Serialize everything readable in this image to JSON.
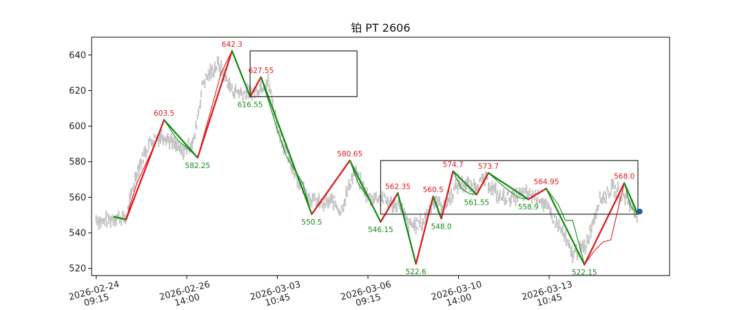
{
  "chart_data": {
    "type": "line",
    "title": "铂 PT 2606",
    "xlabel": "",
    "ylabel": "",
    "ylim": [
      516,
      650
    ],
    "yticks": [
      520,
      540,
      560,
      580,
      600,
      620,
      640
    ],
    "xlim": [
      -5,
      633
    ],
    "xticks": [
      {
        "pos": 0,
        "line1": "2026-02-24",
        "line2": "09:15"
      },
      {
        "pos": 100,
        "line1": "2026-02-26",
        "line2": "14:00"
      },
      {
        "pos": 200,
        "line1": "2026-03-03",
        "line2": "10:45"
      },
      {
        "pos": 300,
        "line1": "2026-03-06",
        "line2": "09:15"
      },
      {
        "pos": 400,
        "line1": "2026-03-10",
        "line2": "14:00"
      },
      {
        "pos": 500,
        "line1": "2026-03-13",
        "line2": "10:45"
      }
    ],
    "grid": false,
    "bar_anchors": [
      [
        0,
        548
      ],
      [
        8,
        546
      ],
      [
        20,
        549
      ],
      [
        33,
        548
      ],
      [
        45,
        575
      ],
      [
        60,
        592
      ],
      [
        75,
        595
      ],
      [
        95,
        585
      ],
      [
        108,
        592
      ],
      [
        118,
        625
      ],
      [
        135,
        635
      ],
      [
        150,
        620
      ],
      [
        170,
        618
      ],
      [
        190,
        625
      ],
      [
        200,
        600
      ],
      [
        212,
        582
      ],
      [
        228,
        565
      ],
      [
        240,
        558
      ],
      [
        250,
        556
      ],
      [
        262,
        558
      ],
      [
        270,
        552
      ],
      [
        285,
        575
      ],
      [
        300,
        560
      ],
      [
        315,
        560
      ],
      [
        325,
        556
      ],
      [
        335,
        556
      ],
      [
        345,
        544
      ],
      [
        360,
        545
      ],
      [
        372,
        558
      ],
      [
        385,
        555
      ],
      [
        400,
        568
      ],
      [
        415,
        566
      ],
      [
        430,
        570
      ],
      [
        445,
        560
      ],
      [
        460,
        560
      ],
      [
        475,
        562
      ],
      [
        490,
        560
      ],
      [
        505,
        548
      ],
      [
        515,
        540
      ],
      [
        525,
        528
      ],
      [
        540,
        532
      ],
      [
        555,
        558
      ],
      [
        570,
        565
      ],
      [
        585,
        560
      ],
      [
        597,
        550
      ]
    ],
    "stroke_segments": [
      {
        "from": [
          20,
          549
        ],
        "to": [
          33,
          547.5
        ],
        "direction": "down"
      },
      {
        "from": [
          33,
          547.5
        ],
        "to": [
          75,
          603.5
        ],
        "direction": "up"
      },
      {
        "from": [
          75,
          603.5
        ],
        "to": [
          112,
          582.25
        ],
        "direction": "down"
      },
      {
        "from": [
          112,
          582.25
        ],
        "to": [
          150,
          642.3
        ],
        "direction": "up"
      },
      {
        "from": [
          150,
          642.3
        ],
        "to": [
          170,
          616.55
        ],
        "direction": "down"
      },
      {
        "from": [
          170,
          616.55
        ],
        "to": [
          182,
          627.55
        ],
        "direction": "up"
      },
      {
        "from": [
          182,
          627.55
        ],
        "to": [
          238,
          550.5
        ],
        "direction": "down"
      },
      {
        "from": [
          238,
          550.5
        ],
        "to": [
          280,
          580.65
        ],
        "direction": "up"
      },
      {
        "from": [
          280,
          580.65
        ],
        "to": [
          314,
          546.15
        ],
        "direction": "down"
      },
      {
        "from": [
          314,
          546.15
        ],
        "to": [
          333,
          562.35
        ],
        "direction": "up"
      },
      {
        "from": [
          333,
          562.35
        ],
        "to": [
          353,
          522.6
        ],
        "direction": "down"
      },
      {
        "from": [
          353,
          522.6
        ],
        "to": [
          372,
          560.5
        ],
        "direction": "up"
      },
      {
        "from": [
          372,
          560.5
        ],
        "to": [
          381,
          548.0
        ],
        "direction": "down"
      },
      {
        "from": [
          381,
          548.0
        ],
        "to": [
          394,
          574.7
        ],
        "direction": "up"
      },
      {
        "from": [
          394,
          574.7
        ],
        "to": [
          420,
          561.55
        ],
        "direction": "down"
      },
      {
        "from": [
          420,
          561.55
        ],
        "to": [
          433,
          573.7
        ],
        "direction": "up"
      },
      {
        "from": [
          433,
          573.7
        ],
        "to": [
          477,
          558.9
        ],
        "direction": "down"
      },
      {
        "from": [
          477,
          558.9
        ],
        "to": [
          497,
          564.95
        ],
        "direction": "up"
      },
      {
        "from": [
          497,
          564.95
        ],
        "to": [
          539,
          522.15
        ],
        "direction": "down"
      },
      {
        "from": [
          539,
          522.15
        ],
        "to": [
          583,
          568.0
        ],
        "direction": "up"
      },
      {
        "from": [
          583,
          568.0
        ],
        "to": [
          598,
          550.5
        ],
        "direction": "down"
      }
    ],
    "sub_lines": [
      {
        "direction": "up",
        "points": [
          [
            33,
            548
          ],
          [
            45,
            568
          ],
          [
            55,
            579
          ],
          [
            65,
            590
          ],
          [
            75,
            603.5
          ]
        ]
      },
      {
        "direction": "down",
        "points": [
          [
            75,
            603.5
          ],
          [
            90,
            592
          ],
          [
            100,
            588
          ],
          [
            112,
            582.25
          ]
        ]
      },
      {
        "direction": "up",
        "points": [
          [
            112,
            582.25
          ],
          [
            125,
            606
          ],
          [
            138,
            630
          ],
          [
            150,
            642.3
          ]
        ]
      },
      {
        "direction": "down",
        "points": [
          [
            182,
            627.55
          ],
          [
            200,
            598
          ],
          [
            210,
            583
          ],
          [
            228,
            568
          ],
          [
            238,
            550.5
          ]
        ]
      },
      {
        "direction": "down",
        "points": [
          [
            280,
            580.65
          ],
          [
            290,
            567
          ],
          [
            300,
            560
          ],
          [
            314,
            546.15
          ]
        ]
      },
      {
        "direction": "down",
        "points": [
          [
            394,
            574.7
          ],
          [
            403,
            565
          ],
          [
            412,
            562
          ],
          [
            420,
            561.55
          ]
        ]
      },
      {
        "direction": "down",
        "points": [
          [
            433,
            573.7
          ],
          [
            450,
            566
          ],
          [
            465,
            560
          ],
          [
            477,
            558.9
          ]
        ]
      },
      {
        "direction": "down",
        "points": [
          [
            497,
            564.95
          ],
          [
            510,
            556
          ],
          [
            518,
            547
          ],
          [
            526,
            547
          ],
          [
            539,
            522.15
          ]
        ]
      },
      {
        "direction": "up",
        "points": [
          [
            539,
            522.15
          ],
          [
            550,
            530
          ],
          [
            560,
            535
          ],
          [
            568,
            536
          ],
          [
            583,
            568.0
          ]
        ]
      },
      {
        "direction": "down",
        "points": [
          [
            583,
            568.0
          ],
          [
            590,
            555
          ],
          [
            598,
            550.5
          ]
        ]
      }
    ],
    "peak_labels": [
      {
        "x": 75,
        "y": 603.5,
        "text": "603.5",
        "kind": "high"
      },
      {
        "x": 112,
        "y": 582.25,
        "text": "582.25",
        "kind": "low"
      },
      {
        "x": 150,
        "y": 642.3,
        "text": "642.3",
        "kind": "high"
      },
      {
        "x": 170,
        "y": 616.55,
        "text": "616.55",
        "kind": "low"
      },
      {
        "x": 182,
        "y": 627.55,
        "text": "627.55",
        "kind": "high"
      },
      {
        "x": 238,
        "y": 550.5,
        "text": "550.5",
        "kind": "low"
      },
      {
        "x": 280,
        "y": 580.65,
        "text": "580.65",
        "kind": "high"
      },
      {
        "x": 314,
        "y": 546.15,
        "text": "546.15",
        "kind": "low"
      },
      {
        "x": 333,
        "y": 562.35,
        "text": "562.35",
        "kind": "high"
      },
      {
        "x": 353,
        "y": 522.6,
        "text": "522.6",
        "kind": "low"
      },
      {
        "x": 372,
        "y": 560.5,
        "text": "560.5",
        "kind": "high"
      },
      {
        "x": 381,
        "y": 548.0,
        "text": "548.0",
        "kind": "low"
      },
      {
        "x": 394,
        "y": 574.7,
        "text": "574.7",
        "kind": "high"
      },
      {
        "x": 420,
        "y": 561.55,
        "text": "561.55",
        "kind": "low"
      },
      {
        "x": 433,
        "y": 573.7,
        "text": "573.7",
        "kind": "high"
      },
      {
        "x": 477,
        "y": 558.9,
        "text": "558.9",
        "kind": "low"
      },
      {
        "x": 497,
        "y": 564.95,
        "text": "564.95",
        "kind": "high"
      },
      {
        "x": 539,
        "y": 522.15,
        "text": "522.15",
        "kind": "low"
      },
      {
        "x": 583,
        "y": 568.0,
        "text": "568.0",
        "kind": "high"
      }
    ],
    "zone_boxes": [
      {
        "x0": 170,
        "x1": 288,
        "y0": 616.55,
        "y1": 642.3
      },
      {
        "x0": 314,
        "x1": 598,
        "y0": 550.5,
        "y1": 580.65
      }
    ],
    "end_marker": {
      "x": 600,
      "y": 552
    },
    "colors": {
      "up": "#e0161a",
      "down": "#148a14",
      "bars": "#c4c4c4",
      "box": "#333333",
      "marker": "#1f5fa8"
    }
  }
}
